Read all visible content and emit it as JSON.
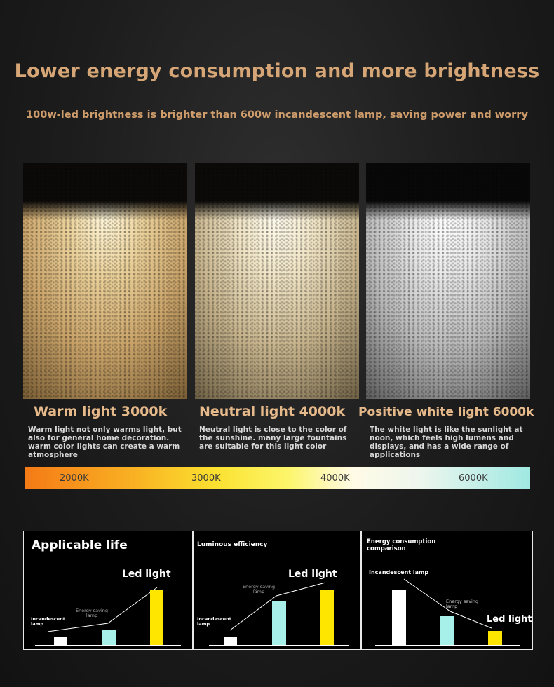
{
  "header": {
    "title": "Lower energy consumption and more brightness",
    "subtitle": "100w-led brightness is brighter than 600w incandescent lamp, saving power and worry"
  },
  "panels": [
    {
      "label": "Warm light 3000k",
      "description": "Warm light not only warms light, but also for general home decoration. warm color lights can create a warm atmosphere",
      "color": "#e8cf9a"
    },
    {
      "label": "Neutral light 4000k",
      "description": "Neutral light is close to the color of the sunshine. many large fountains are suitable for this light color",
      "color": "#efe3c4"
    },
    {
      "label": "Positive white light 6000k",
      "description": "The white light is like the sunlight at noon, which feels high lumens and displays, and has a wide range of applications",
      "color": "#e4e4e4"
    }
  ],
  "color_scale": {
    "stops": [
      "2000K",
      "3000K",
      "4000K",
      "6000K"
    ]
  },
  "comparisons": [
    {
      "title": "Applicable life",
      "incandescent_label": "Incandescent lamp",
      "energy_saving_label": "Energy saving lamp",
      "led_label": "Led light",
      "values": [
        0.16,
        0.28,
        1.0
      ]
    },
    {
      "title": "Luminous efficiency",
      "incandescent_label": "Incandescent lamp",
      "energy_saving_label": "Energy saving lamp",
      "led_label": "Led light",
      "values": [
        0.16,
        0.8,
        1.0
      ]
    },
    {
      "title": "Energy consumption comparison",
      "incandescent_label": "Incandescent lamp",
      "energy_saving_label": "Energy saving lamp",
      "led_label": "Led light",
      "values": [
        1.0,
        0.52,
        0.25
      ]
    }
  ],
  "colors": {
    "accent": "#d6a676",
    "incandescent_bar": "#ffffff",
    "energy_saving_bar": "#a7f0ea",
    "led_bar": "#ffe600"
  }
}
